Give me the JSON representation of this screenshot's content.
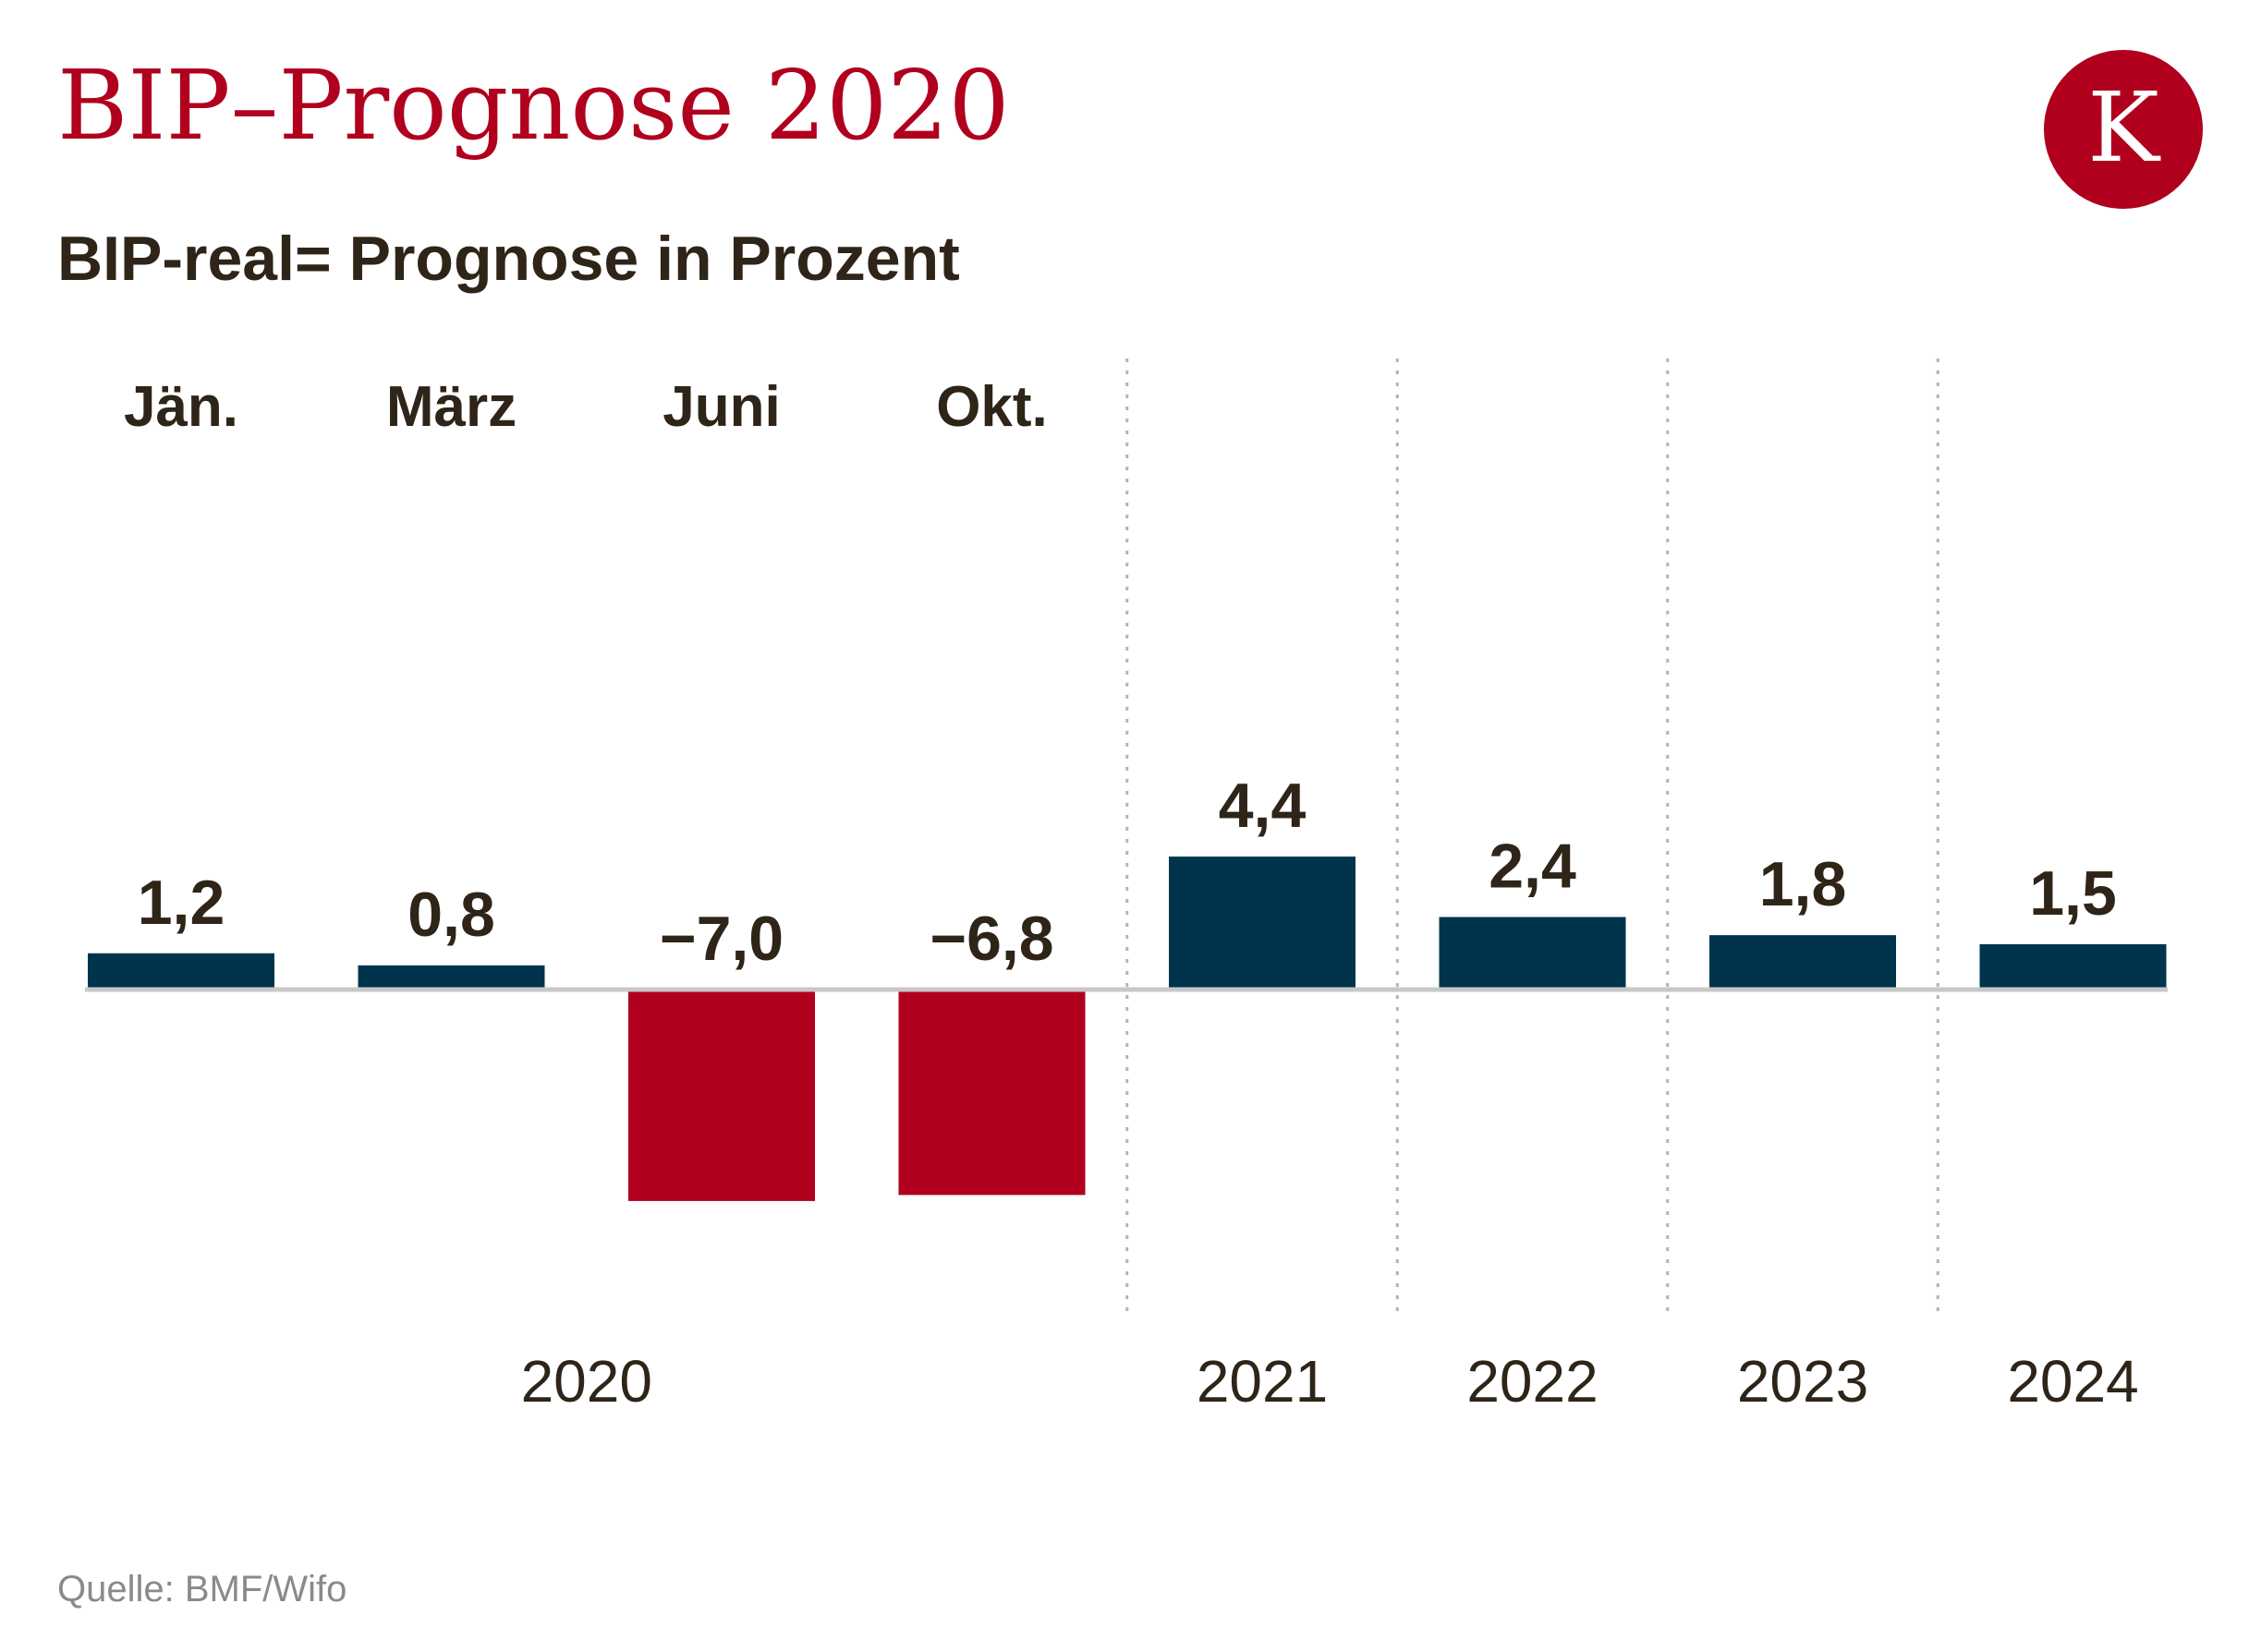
{
  "title": "BIP–Prognose 2020",
  "subtitle": "BIP-real= Prognose in Prozent",
  "logo": {
    "letter": "K",
    "icon": "kleine-zeitung-logo-icon",
    "color": "#b0001e"
  },
  "source": "Quelle: BMF/Wifo",
  "colors": {
    "positive": "#00344d",
    "negative": "#b0001e",
    "text": "#2e2418",
    "axis": "#c8c8c8",
    "divider": "#b4b4b4"
  },
  "chart_data": {
    "type": "bar",
    "title": "BIP–Prognose 2020",
    "subtitle": "BIP-real= Prognose in Prozent",
    "xlabel": "",
    "ylabel": "",
    "ylim": [
      -10,
      7
    ],
    "grid": false,
    "bars": [
      {
        "top_label": "Jän.",
        "value": 1.2,
        "value_label": "1,2"
      },
      {
        "top_label": "März",
        "value": 0.8,
        "value_label": "0,8"
      },
      {
        "top_label": "Juni",
        "value": -7.0,
        "value_label": "−7,0"
      },
      {
        "top_label": "Okt.",
        "value": -6.8,
        "value_label": "−6,8"
      },
      {
        "top_label": "",
        "value": 4.4,
        "value_label": "4,4"
      },
      {
        "top_label": "",
        "value": 2.4,
        "value_label": "2,4"
      },
      {
        "top_label": "",
        "value": 1.8,
        "value_label": "1,8"
      },
      {
        "top_label": "",
        "value": 1.5,
        "value_label": "1,5"
      }
    ],
    "groups": [
      {
        "label": "2020",
        "bars": [
          0,
          1,
          2,
          3
        ]
      },
      {
        "label": "2021",
        "bars": [
          4
        ]
      },
      {
        "label": "2022",
        "bars": [
          5
        ]
      },
      {
        "label": "2023",
        "bars": [
          6
        ]
      },
      {
        "label": "2024",
        "bars": [
          7
        ]
      }
    ]
  }
}
